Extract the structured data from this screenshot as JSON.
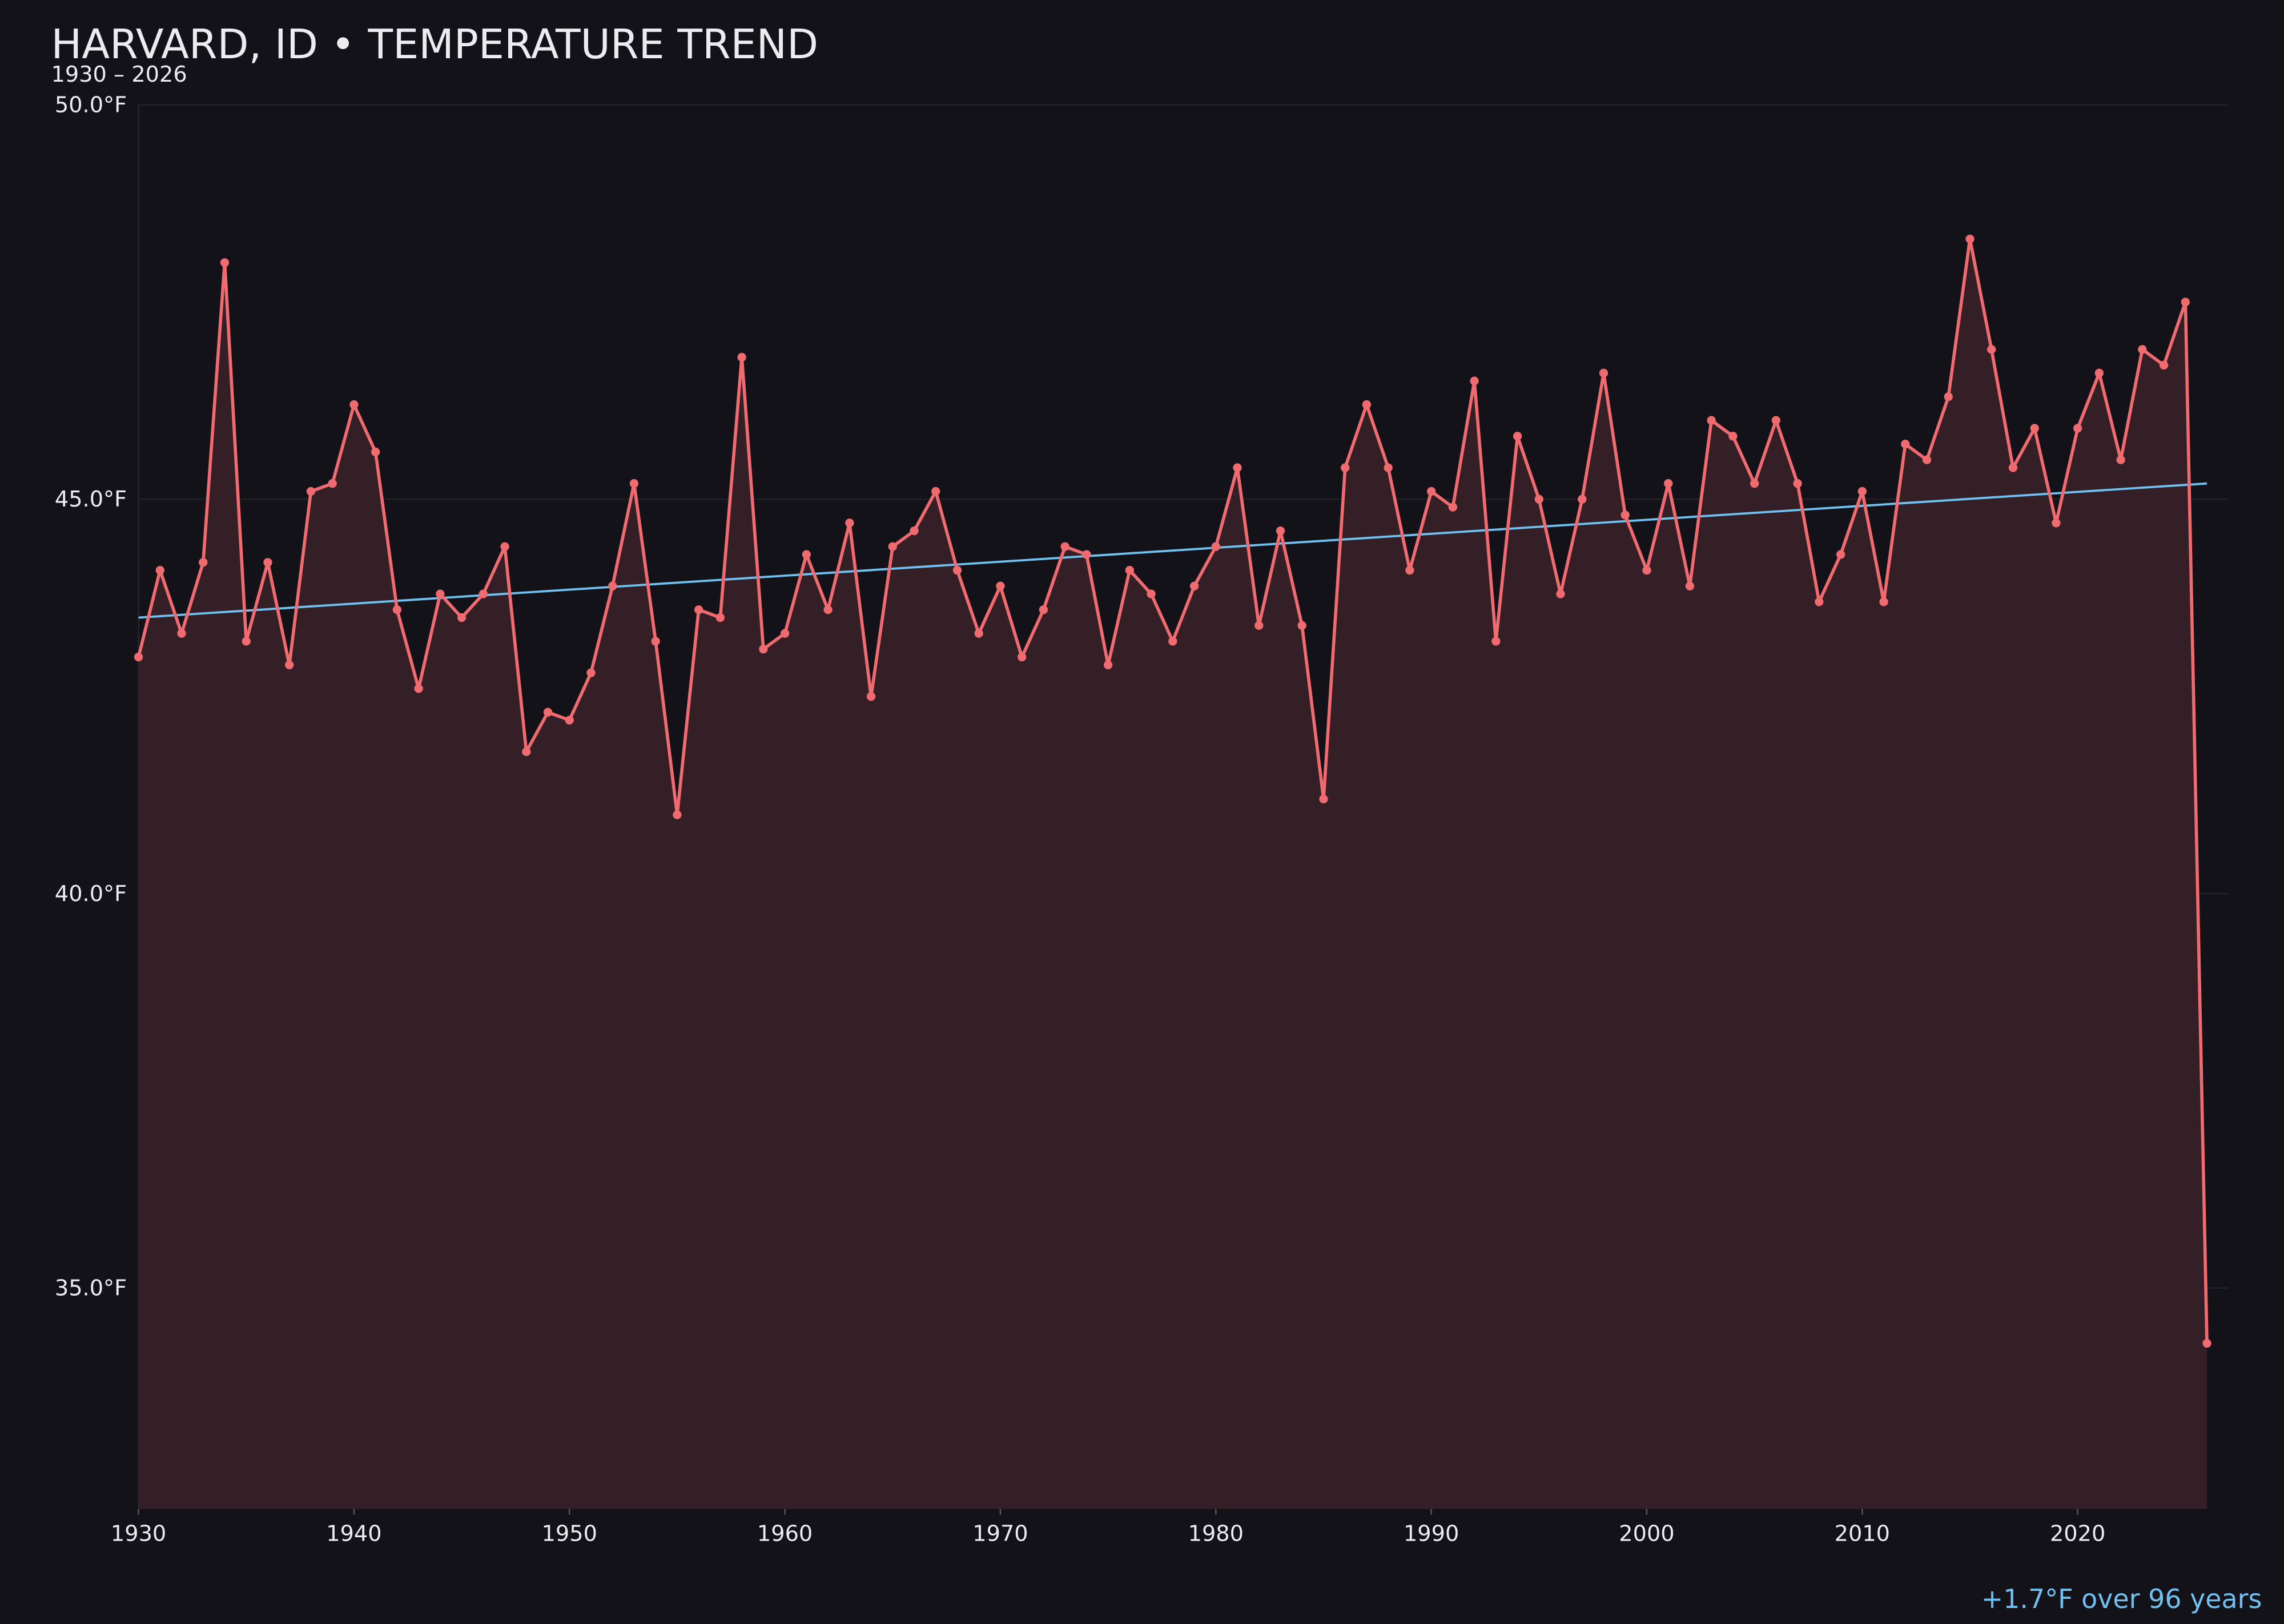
{
  "chart_data": {
    "type": "line",
    "title": "HARVARD, ID • TEMPERATURE TREND",
    "subtitle": "1930 – 2026",
    "annotation": "+1.7°F over 96 years",
    "x": [
      1930,
      1931,
      1932,
      1933,
      1934,
      1935,
      1936,
      1937,
      1938,
      1939,
      1940,
      1941,
      1942,
      1943,
      1944,
      1945,
      1946,
      1947,
      1948,
      1949,
      1950,
      1951,
      1952,
      1953,
      1954,
      1955,
      1956,
      1957,
      1958,
      1959,
      1960,
      1961,
      1962,
      1963,
      1964,
      1965,
      1966,
      1967,
      1968,
      1969,
      1970,
      1971,
      1972,
      1973,
      1974,
      1975,
      1976,
      1977,
      1978,
      1979,
      1980,
      1981,
      1982,
      1983,
      1984,
      1985,
      1986,
      1987,
      1988,
      1989,
      1990,
      1991,
      1992,
      1993,
      1994,
      1995,
      1996,
      1997,
      1998,
      1999,
      2000,
      2001,
      2002,
      2003,
      2004,
      2005,
      2006,
      2007,
      2008,
      2009,
      2010,
      2011,
      2012,
      2013,
      2014,
      2015,
      2016,
      2017,
      2018,
      2019,
      2020,
      2021,
      2022,
      2023,
      2024,
      2025,
      2026
    ],
    "values": [
      43.0,
      44.1,
      43.3,
      44.2,
      48.0,
      43.2,
      44.2,
      42.9,
      45.1,
      45.2,
      46.2,
      45.6,
      43.6,
      42.6,
      43.8,
      43.5,
      43.8,
      44.4,
      41.8,
      42.3,
      42.2,
      42.8,
      43.9,
      45.2,
      43.2,
      41.0,
      43.6,
      43.5,
      46.8,
      43.1,
      43.3,
      44.3,
      43.6,
      44.7,
      42.5,
      44.4,
      44.6,
      45.1,
      44.1,
      43.3,
      43.9,
      43.0,
      43.6,
      44.4,
      44.3,
      42.9,
      44.1,
      43.8,
      43.2,
      43.9,
      44.4,
      45.4,
      43.4,
      44.6,
      43.4,
      41.2,
      45.4,
      46.2,
      45.4,
      44.1,
      45.1,
      44.9,
      46.5,
      43.2,
      45.8,
      45.0,
      43.8,
      45.0,
      46.6,
      44.8,
      44.1,
      45.2,
      43.9,
      46.0,
      45.8,
      45.2,
      46.0,
      45.2,
      43.7,
      44.3,
      45.1,
      43.7,
      45.7,
      45.5,
      46.3,
      48.3,
      46.9,
      45.4,
      45.9,
      44.7,
      45.9,
      46.6,
      45.5,
      46.9,
      46.7,
      47.5,
      34.3
    ],
    "color": "#ef6b70",
    "area_color": "#351f26",
    "trend": {
      "x": [
        1930,
        2026
      ],
      "values": [
        43.5,
        45.2
      ],
      "color": "#6ec1f0"
    },
    "xlim": [
      1930,
      2027
    ],
    "ylim": [
      32.2,
      50.0
    ],
    "xticks": [
      1930,
      1940,
      1950,
      1960,
      1970,
      1980,
      1990,
      2000,
      2010,
      2020
    ],
    "yticks": [
      {
        "value": 35,
        "label": "35.0°F"
      },
      {
        "value": 40,
        "label": "40.0°F"
      },
      {
        "value": 45,
        "label": "45.0°F"
      },
      {
        "value": 50,
        "label": "50.0°F"
      }
    ],
    "grid": true
  }
}
